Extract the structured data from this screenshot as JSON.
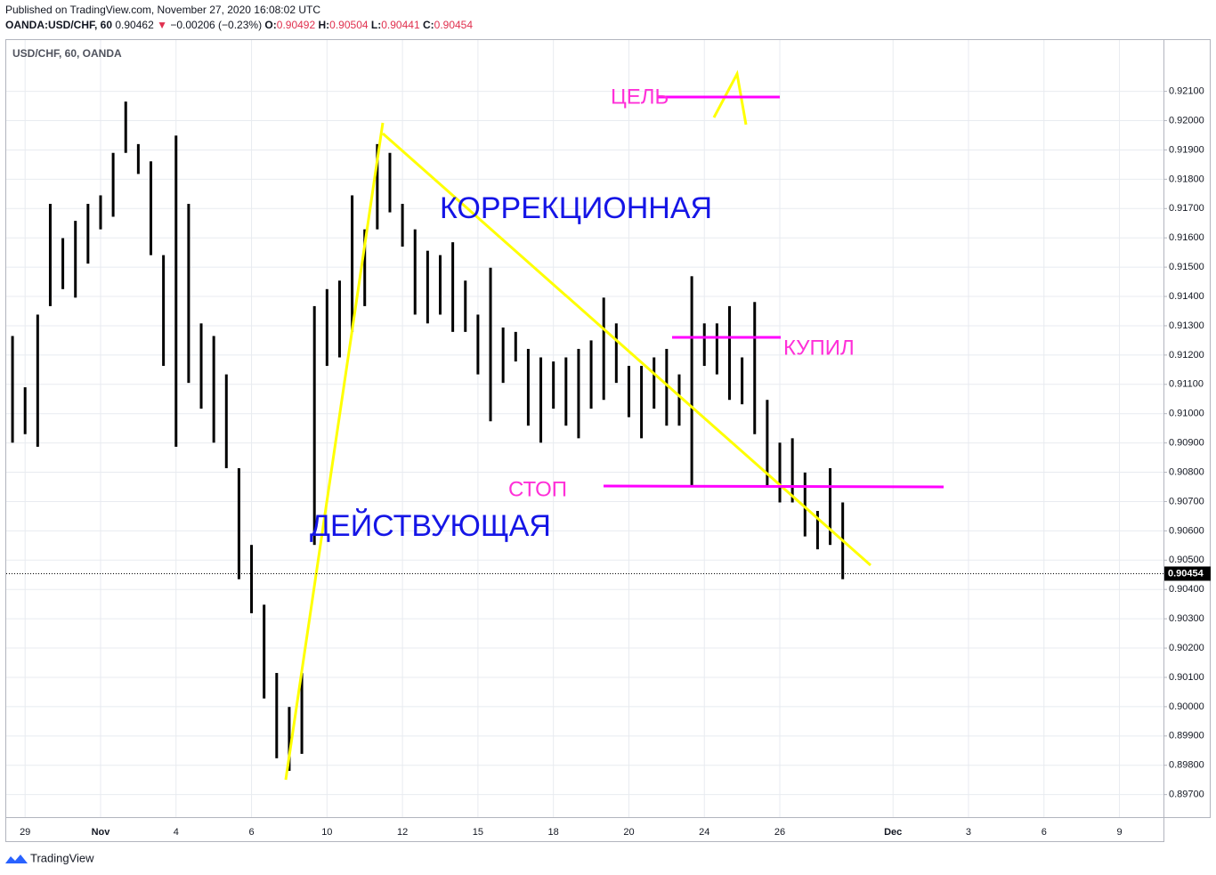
{
  "header": {
    "published": "Published on TradingView.com, November 27, 2020 16:08:02 UTC",
    "symbol": "OANDA:USD/CHF, 60",
    "price": 0.90462,
    "arrow": "▼",
    "change": "−0.00206 (−0.23%)",
    "o_label": "O:",
    "open": 0.90492,
    "h_label": "H:",
    "high": 0.90504,
    "l_label": "L:",
    "low": 0.90441,
    "c_label": "C:",
    "close": 0.90454
  },
  "footer": {
    "brand": "TradingView"
  },
  "chart_data": {
    "type": "ohlc",
    "title": "USD/CHF, 60, OANDA",
    "color": "#000000",
    "grid": true,
    "categories": [
      null,
      "29",
      null,
      null,
      null,
      null,
      null,
      "Nov",
      null,
      null,
      null,
      null,
      null,
      "4",
      null,
      null,
      null,
      null,
      null,
      "6",
      null,
      null,
      null,
      null,
      null,
      "10",
      null,
      null,
      null,
      null,
      null,
      "12",
      null,
      null,
      null,
      null,
      null,
      "15",
      null,
      null,
      null,
      null,
      null,
      "18",
      null,
      null,
      null,
      null,
      null,
      "20",
      null,
      null,
      null,
      null,
      null,
      "24",
      null,
      null,
      null,
      null,
      null,
      "26",
      null,
      null,
      null,
      null,
      null,
      null,
      null,
      null,
      "Dec",
      null,
      null,
      null,
      null,
      null,
      "3",
      null,
      null,
      null,
      null,
      null,
      "6",
      null,
      null,
      null,
      null,
      null,
      "9",
      null,
      null,
      null
    ],
    "high": [
      0.91265,
      0.9109,
      0.91338,
      0.91716,
      0.91599,
      0.91658,
      0.91716,
      0.91745,
      0.9189,
      0.92065,
      0.9192,
      0.91861,
      0.91541,
      0.91949,
      0.91716,
      0.91308,
      0.91265,
      0.91134,
      0.90814,
      0.90552,
      0.90348,
      0.90115,
      0.89999,
      0.90115,
      0.91367,
      0.91425,
      0.91454,
      0.91745,
      0.91629,
      0.9192,
      0.9189,
      0.91716,
      0.91629,
      0.91556,
      0.91541,
      0.91585,
      0.91454,
      0.91338,
      0.91498,
      0.91294,
      0.91279,
      0.91221,
      0.91192,
      0.91178,
      0.91192,
      0.91221,
      0.9125,
      0.91396,
      0.91308,
      0.91163,
      0.91163,
      0.91192,
      0.91221,
      0.91134,
      0.91469,
      0.91308,
      0.91308,
      0.91367,
      0.91192,
      0.91381,
      0.91047,
      0.90901,
      0.90916,
      0.90799,
      0.90668,
      0.90814,
      0.90697,
      null,
      null,
      null,
      null,
      null,
      null,
      null,
      null,
      null,
      null,
      null,
      null,
      null,
      null,
      null,
      null,
      null,
      null,
      null,
      null,
      null,
      null,
      null,
      null,
      null
    ],
    "low": [
      0.90901,
      0.9093,
      0.90887,
      0.91367,
      0.91425,
      0.91396,
      0.91512,
      0.91629,
      0.91672,
      0.9189,
      0.91818,
      0.91541,
      0.91163,
      0.90887,
      0.91105,
      0.91017,
      0.90901,
      0.90814,
      0.90435,
      0.90319,
      0.90028,
      0.89824,
      0.89781,
      0.89839,
      0.90552,
      0.91163,
      0.91192,
      0.91279,
      0.91367,
      0.91629,
      0.91687,
      0.9157,
      0.91338,
      0.91308,
      0.91338,
      0.91279,
      0.91279,
      0.91134,
      0.90974,
      0.91105,
      0.91178,
      0.90959,
      0.90901,
      0.91017,
      0.90959,
      0.90916,
      0.91017,
      0.91047,
      0.91105,
      0.90988,
      0.90916,
      0.91017,
      0.90959,
      0.90959,
      0.90756,
      0.91163,
      0.91134,
      0.91047,
      0.91032,
      0.9093,
      0.90756,
      0.90697,
      0.90697,
      0.90581,
      0.90537,
      0.90552,
      0.90435,
      null,
      null,
      null,
      null,
      null,
      null,
      null,
      null,
      null,
      null,
      null,
      null,
      null,
      null,
      null,
      null,
      null,
      null,
      null,
      null,
      null,
      null,
      null,
      null,
      null
    ],
    "last_price": 0.90454,
    "ylim": [
      0.89623,
      0.92275
    ],
    "yticks": [
      {
        "value": 0.921,
        "label": "0.92100"
      },
      {
        "value": 0.92,
        "label": "0.92000"
      },
      {
        "value": 0.919,
        "label": "0.91900"
      },
      {
        "value": 0.918,
        "label": "0.91800"
      },
      {
        "value": 0.917,
        "label": "0.91700"
      },
      {
        "value": 0.916,
        "label": "0.91600"
      },
      {
        "value": 0.915,
        "label": "0.91500"
      },
      {
        "value": 0.914,
        "label": "0.91400"
      },
      {
        "value": 0.913,
        "label": "0.91300"
      },
      {
        "value": 0.912,
        "label": "0.91200"
      },
      {
        "value": 0.911,
        "label": "0.91100"
      },
      {
        "value": 0.91,
        "label": "0.91000"
      },
      {
        "value": 0.909,
        "label": "0.90900"
      },
      {
        "value": 0.908,
        "label": "0.90800"
      },
      {
        "value": 0.907,
        "label": "0.90700"
      },
      {
        "value": 0.906,
        "label": "0.90600"
      },
      {
        "value": 0.905,
        "label": "0.90500"
      },
      {
        "value": 0.904,
        "label": "0.90400"
      },
      {
        "value": 0.903,
        "label": "0.90300"
      },
      {
        "value": 0.902,
        "label": "0.90200"
      },
      {
        "value": 0.901,
        "label": "0.90100"
      },
      {
        "value": 0.9,
        "label": "0.90000"
      },
      {
        "value": 0.899,
        "label": "0.89900"
      },
      {
        "value": 0.898,
        "label": "0.89800"
      },
      {
        "value": 0.897,
        "label": "0.89700"
      }
    ],
    "annotations": [
      "ЦЕЛЬ",
      "КОРРЕКЦИОННАЯ",
      "КУПИЛ",
      "СТОП",
      "ДЕЙСТВУЮЩАЯ"
    ]
  }
}
